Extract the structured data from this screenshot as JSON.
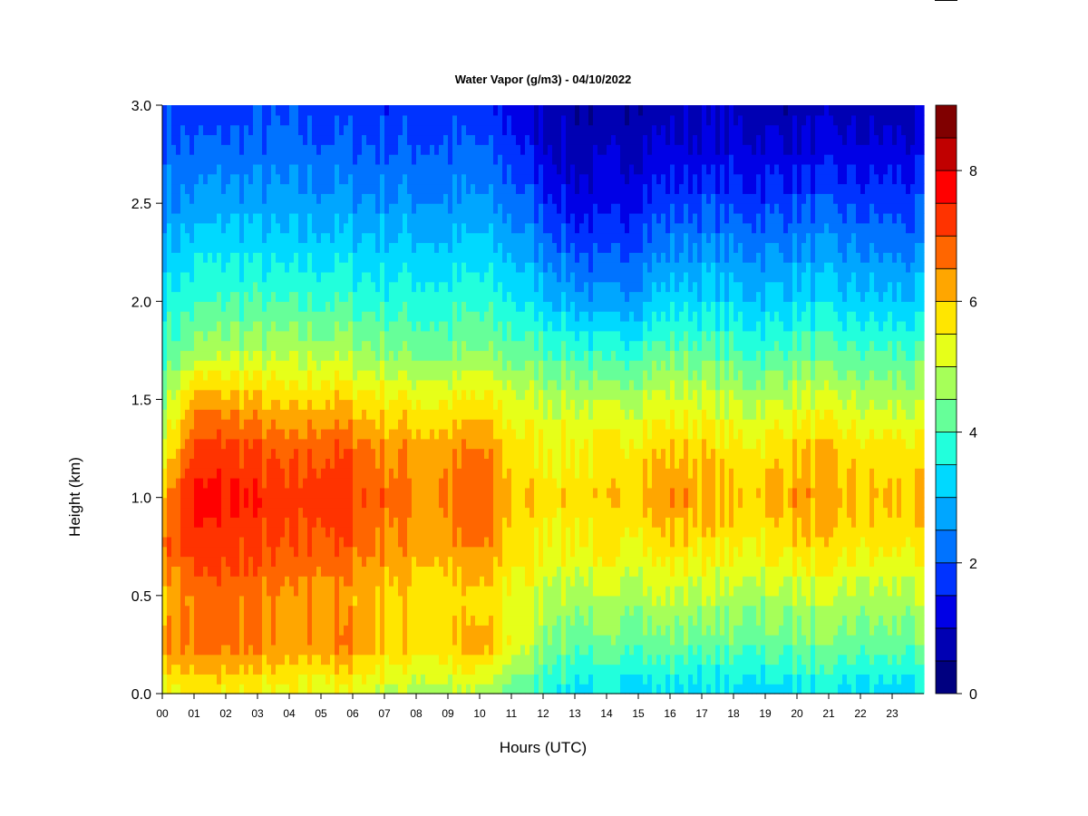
{
  "chart_data": {
    "type": "heatmap",
    "title": "Water Vapor (g/m3) - 04/10/2022",
    "xlabel": "Hours (UTC)",
    "ylabel": "Height (km)",
    "x_range": [
      0,
      24
    ],
    "x_ticks": [
      "00",
      "01",
      "02",
      "03",
      "04",
      "05",
      "06",
      "07",
      "08",
      "09",
      "10",
      "11",
      "12",
      "13",
      "14",
      "15",
      "16",
      "17",
      "18",
      "19",
      "20",
      "21",
      "22",
      "23"
    ],
    "y_range": [
      0.0,
      3.0
    ],
    "y_ticks": [
      "0.0",
      "0.5",
      "1.0",
      "1.5",
      "2.0",
      "2.5",
      "3.0"
    ],
    "colorbar": {
      "range": [
        0,
        9
      ],
      "ticks": [
        "0",
        "2",
        "4",
        "6",
        "8"
      ],
      "placement": "right",
      "colors": [
        "#000080",
        "#0000b3",
        "#0000e6",
        "#0033ff",
        "#0073ff",
        "#00a6ff",
        "#00d9ff",
        "#22ffdc",
        "#66ff99",
        "#a6ff59",
        "#e6ff19",
        "#ffe600",
        "#ffa600",
        "#ff6600",
        "#ff3300",
        "#ff0000",
        "#c00000",
        "#800000"
      ]
    },
    "hours": [
      0,
      1,
      2,
      3,
      4,
      5,
      6,
      7,
      8,
      9,
      10,
      11,
      12,
      13,
      14,
      15,
      16,
      17,
      18,
      19,
      20,
      21,
      22,
      23,
      24
    ],
    "heights_km": [
      0.0,
      0.25,
      0.5,
      0.75,
      1.0,
      1.25,
      1.5,
      1.75,
      2.0,
      2.25,
      2.5,
      2.75,
      3.0
    ],
    "values_g_m3": [
      [
        5.4,
        6.4,
        6.0,
        6.8,
        6.2,
        5.3,
        4.5,
        4.0,
        3.6,
        3.0,
        2.5,
        2.2,
        1.9
      ],
      [
        5.5,
        6.6,
        6.6,
        7.2,
        7.6,
        7.1,
        6.2,
        4.6,
        3.9,
        3.3,
        2.6,
        2.1,
        1.6
      ],
      [
        5.5,
        6.7,
        6.8,
        7.2,
        7.6,
        7.2,
        6.2,
        4.8,
        4.0,
        3.4,
        2.8,
        2.2,
        1.7
      ],
      [
        5.4,
        6.5,
        6.6,
        7.1,
        7.4,
        7.0,
        6.0,
        4.8,
        4.0,
        3.3,
        2.7,
        2.2,
        1.8
      ],
      [
        5.2,
        6.2,
        6.2,
        6.8,
        7.0,
        6.7,
        5.7,
        4.7,
        3.9,
        3.2,
        2.6,
        2.2,
        1.8
      ],
      [
        5.2,
        6.5,
        6.4,
        7.0,
        7.4,
        7.0,
        6.0,
        4.8,
        4.0,
        3.3,
        2.7,
        2.2,
        1.7
      ],
      [
        5.2,
        6.5,
        6.2,
        6.8,
        7.2,
        6.8,
        5.8,
        4.7,
        3.9,
        3.3,
        2.6,
        2.1,
        1.7
      ],
      [
        5.0,
        6.0,
        6.0,
        6.5,
        6.8,
        6.5,
        5.6,
        4.5,
        3.8,
        3.2,
        2.6,
        2.1,
        1.7
      ],
      [
        4.8,
        5.8,
        5.8,
        6.3,
        6.5,
        6.3,
        5.5,
        4.4,
        3.8,
        3.2,
        2.6,
        2.1,
        1.7
      ],
      [
        4.8,
        5.8,
        5.7,
        6.2,
        6.6,
        6.3,
        5.4,
        4.3,
        3.7,
        3.1,
        2.5,
        2.1,
        1.7
      ],
      [
        4.8,
        6.2,
        5.8,
        6.5,
        7.0,
        6.5,
        5.6,
        4.5,
        3.8,
        3.2,
        2.6,
        2.1,
        1.6
      ],
      [
        4.2,
        5.4,
        5.4,
        5.8,
        6.0,
        5.8,
        5.2,
        4.3,
        3.6,
        2.9,
        2.3,
        1.8,
        1.3
      ],
      [
        3.8,
        4.6,
        5.0,
        5.6,
        5.8,
        5.6,
        5.0,
        4.1,
        3.2,
        2.5,
        1.8,
        1.2,
        0.8
      ],
      [
        3.4,
        4.2,
        4.8,
        5.5,
        5.8,
        5.5,
        5.0,
        4.0,
        2.8,
        2.0,
        1.3,
        0.8,
        0.6
      ],
      [
        3.3,
        4.2,
        4.8,
        5.5,
        5.8,
        5.6,
        4.8,
        3.6,
        2.5,
        1.8,
        1.2,
        0.8,
        0.6
      ],
      [
        3.3,
        4.3,
        4.9,
        5.6,
        6.1,
        5.8,
        5.0,
        4.0,
        2.9,
        2.2,
        1.6,
        1.1,
        0.7
      ],
      [
        3.3,
        4.3,
        5.0,
        5.8,
        6.4,
        6.0,
        5.2,
        4.2,
        3.3,
        2.5,
        1.8,
        1.2,
        0.7
      ],
      [
        3.3,
        4.2,
        4.9,
        5.7,
        6.3,
        5.9,
        5.1,
        4.2,
        3.3,
        2.6,
        1.9,
        1.2,
        0.8
      ],
      [
        3.2,
        4.2,
        4.8,
        5.5,
        6.0,
        5.6,
        4.9,
        4.0,
        3.2,
        2.5,
        1.8,
        1.2,
        0.8
      ],
      [
        3.2,
        4.2,
        4.8,
        5.6,
        6.0,
        5.7,
        4.9,
        3.9,
        3.1,
        2.5,
        1.8,
        1.2,
        0.7
      ],
      [
        3.3,
        4.3,
        4.9,
        5.8,
        6.4,
        6.0,
        5.1,
        4.2,
        3.3,
        2.6,
        1.9,
        1.2,
        0.7
      ],
      [
        3.3,
        4.3,
        4.9,
        5.7,
        6.2,
        5.9,
        5.0,
        4.1,
        3.2,
        2.6,
        1.9,
        1.2,
        0.7
      ],
      [
        3.2,
        4.2,
        4.8,
        5.6,
        6.0,
        5.7,
        4.9,
        4.0,
        3.2,
        2.5,
        1.8,
        1.2,
        0.7
      ],
      [
        3.2,
        4.2,
        4.8,
        5.6,
        6.0,
        5.7,
        4.8,
        4.0,
        3.1,
        2.4,
        1.8,
        1.2,
        0.7
      ],
      [
        3.2,
        4.2,
        4.8,
        5.6,
        6.0,
        5.6,
        4.8,
        4.0,
        3.1,
        2.4,
        1.8,
        1.2,
        0.7
      ]
    ]
  }
}
